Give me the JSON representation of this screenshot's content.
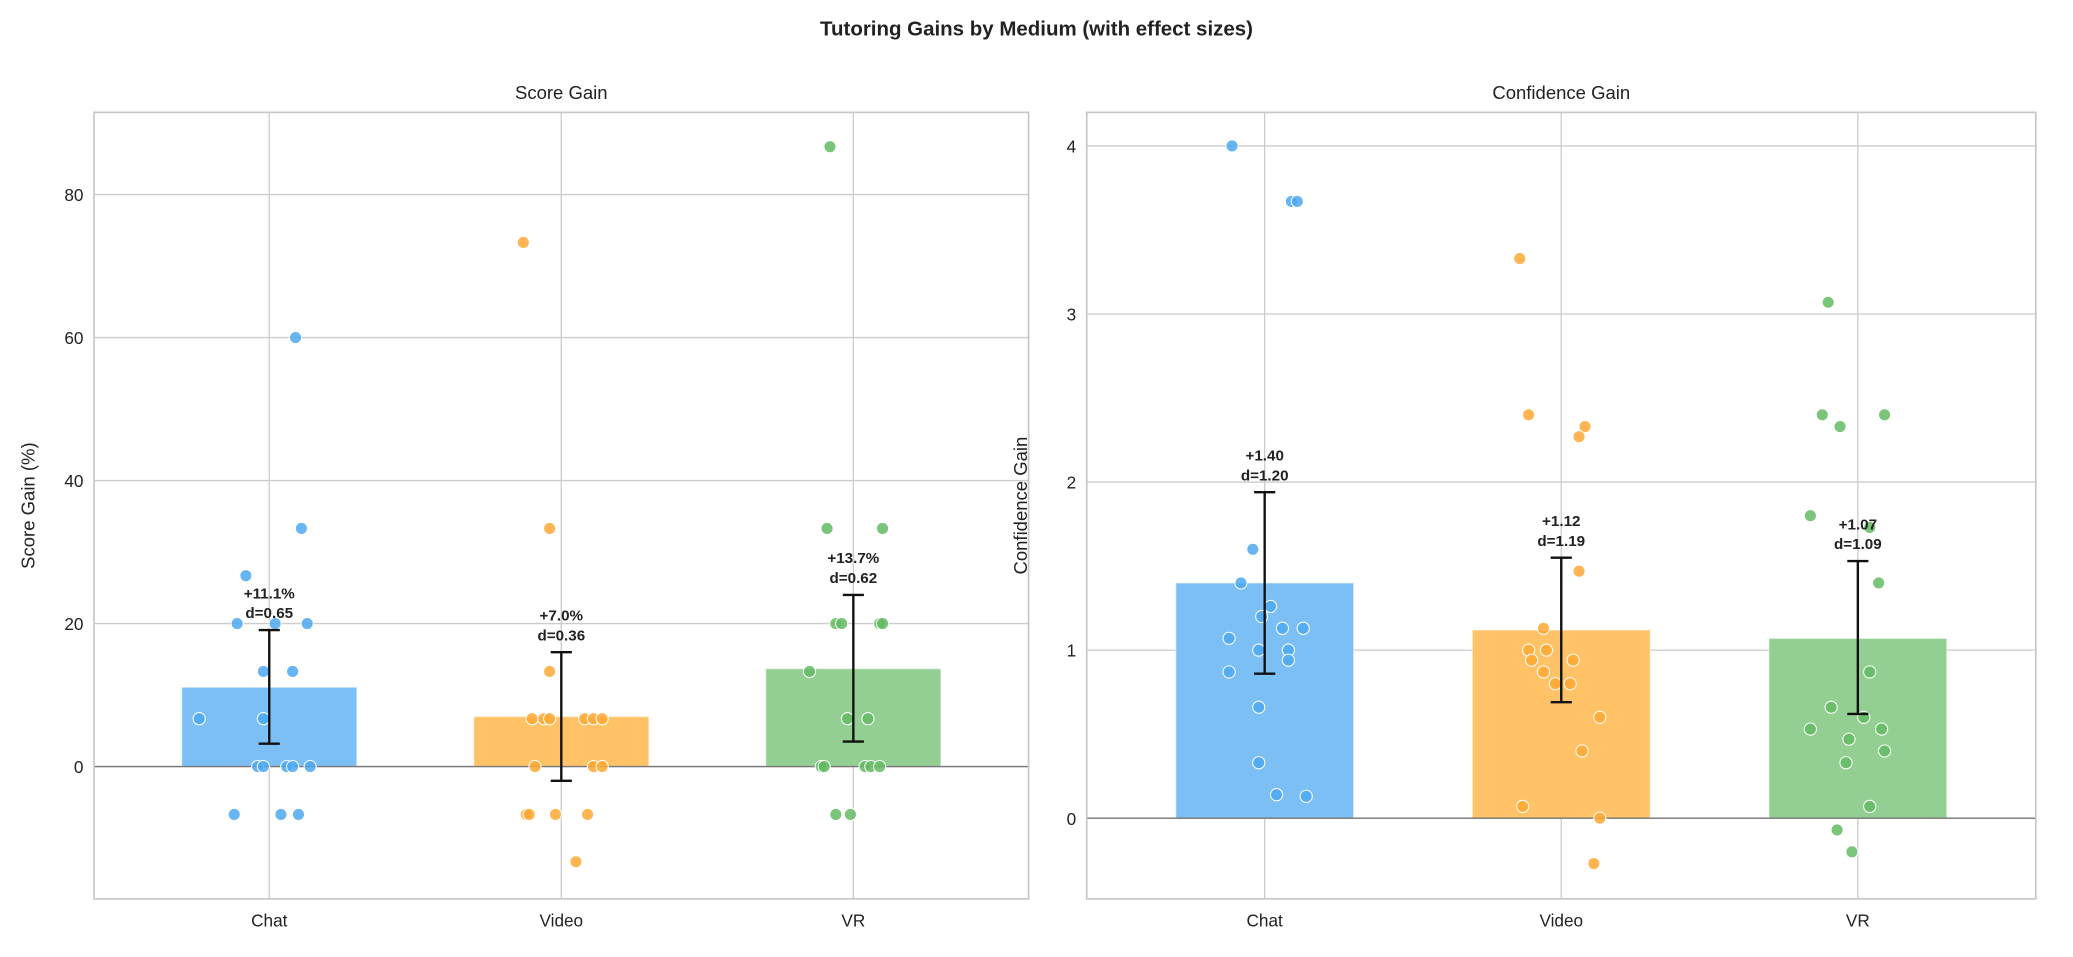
{
  "title": "Tutoring Gains by Medium (with effect sizes)",
  "colors": {
    "Chat": "#4ea8f2",
    "Video": "#ffa833",
    "VR": "#63bb63",
    "grid": "#cccccc",
    "errorbar": "#111111"
  },
  "chart_data": [
    {
      "type": "bar",
      "title": "Score Gain",
      "xlabel": "",
      "ylabel": "Score Gain (%)",
      "categories": [
        "Chat",
        "Video",
        "VR"
      ],
      "ylim": [
        -18.5,
        91.5
      ],
      "yticks": [
        0,
        20,
        40,
        60,
        80
      ],
      "grid": true,
      "values": [
        11.1,
        7.0,
        13.7
      ],
      "error_low": [
        3.2,
        -2.0,
        3.5
      ],
      "error_high": [
        19.1,
        16.0,
        24.0
      ],
      "bar_labels": [
        "+11.1%",
        "+7.0%",
        "+13.7%"
      ],
      "effect_labels": [
        "d=0.65",
        "d=0.36",
        "d=0.62"
      ],
      "points": [
        {
          "category": "Chat",
          "values": [
            26.7,
            20,
            20,
            20,
            33.3,
            60,
            13.3,
            13.3,
            6.7,
            6.7,
            0,
            0,
            0,
            0,
            0,
            -6.7,
            -6.7,
            -6.7
          ],
          "jitter": [
            -0.08,
            -0.11,
            0.02,
            0.13,
            0.11,
            0.09,
            -0.02,
            0.08,
            -0.24,
            -0.02,
            -0.04,
            -0.02,
            0.06,
            0.08,
            0.14,
            -0.12,
            0.04,
            0.1
          ]
        },
        {
          "category": "Video",
          "values": [
            73.3,
            33.3,
            13.3,
            6.7,
            6.7,
            6.7,
            6.7,
            6.7,
            6.7,
            0,
            0,
            0,
            -6.7,
            -6.7,
            -6.7,
            -6.7,
            -13.3
          ],
          "jitter": [
            -0.13,
            -0.04,
            -0.04,
            -0.1,
            -0.06,
            -0.04,
            0.08,
            0.11,
            0.14,
            -0.09,
            0.11,
            0.14,
            -0.12,
            -0.11,
            -0.02,
            0.09,
            0.05
          ]
        },
        {
          "category": "VR",
          "values": [
            86.7,
            33.3,
            33.3,
            20,
            20,
            20,
            20,
            13.3,
            6.7,
            6.7,
            0,
            0,
            0,
            0,
            0,
            -6.7,
            -6.7
          ],
          "jitter": [
            -0.08,
            -0.09,
            0.1,
            -0.06,
            -0.04,
            0.09,
            0.1,
            -0.15,
            -0.02,
            0.05,
            -0.11,
            -0.1,
            0.04,
            0.06,
            0.09,
            -0.06,
            -0.01
          ]
        }
      ]
    },
    {
      "type": "bar",
      "title": "Confidence Gain",
      "xlabel": "",
      "ylabel": "Confidence Gain",
      "categories": [
        "Chat",
        "Video",
        "VR"
      ],
      "ylim": [
        -0.48,
        4.2
      ],
      "yticks": [
        0,
        1,
        2,
        3,
        4
      ],
      "grid": true,
      "values": [
        1.4,
        1.12,
        1.07
      ],
      "error_low": [
        0.86,
        0.69,
        0.62
      ],
      "error_high": [
        1.94,
        1.55,
        1.53
      ],
      "bar_labels": [
        "+1.40",
        "+1.12",
        "+1.07"
      ],
      "effect_labels": [
        "d=1.20",
        "d=1.19",
        "d=1.09"
      ],
      "points": [
        {
          "category": "Chat",
          "values": [
            4.0,
            3.67,
            3.67,
            1.6,
            1.4,
            1.26,
            1.2,
            1.13,
            1.13,
            1.07,
            1.0,
            1.0,
            0.94,
            0.87,
            0.66,
            0.33,
            0.14,
            0.13
          ],
          "jitter": [
            -0.11,
            0.09,
            0.11,
            -0.04,
            -0.08,
            0.02,
            -0.01,
            0.06,
            0.13,
            -0.12,
            -0.02,
            0.08,
            0.08,
            -0.12,
            -0.02,
            -0.02,
            0.04,
            0.14
          ]
        },
        {
          "category": "Video",
          "values": [
            3.33,
            2.4,
            2.33,
            2.27,
            1.47,
            1.13,
            1.0,
            1.0,
            0.94,
            0.94,
            0.87,
            0.8,
            0.8,
            0.6,
            0.4,
            0.07,
            0.0,
            -0.27
          ],
          "jitter": [
            -0.14,
            -0.11,
            0.08,
            0.06,
            0.06,
            -0.06,
            -0.11,
            -0.05,
            -0.1,
            0.04,
            -0.06,
            -0.02,
            0.03,
            0.13,
            0.07,
            -0.13,
            0.13,
            0.11
          ]
        },
        {
          "category": "VR",
          "values": [
            3.07,
            2.4,
            2.33,
            2.4,
            1.8,
            1.73,
            1.4,
            0.87,
            0.66,
            0.6,
            0.53,
            0.53,
            0.47,
            0.4,
            0.33,
            0.07,
            -0.07,
            -0.2
          ],
          "jitter": [
            -0.1,
            -0.12,
            -0.06,
            0.09,
            -0.16,
            0.04,
            0.07,
            0.04,
            -0.09,
            0.02,
            -0.16,
            0.08,
            -0.03,
            0.09,
            -0.04,
            0.04,
            -0.07,
            -0.02
          ]
        }
      ]
    }
  ]
}
